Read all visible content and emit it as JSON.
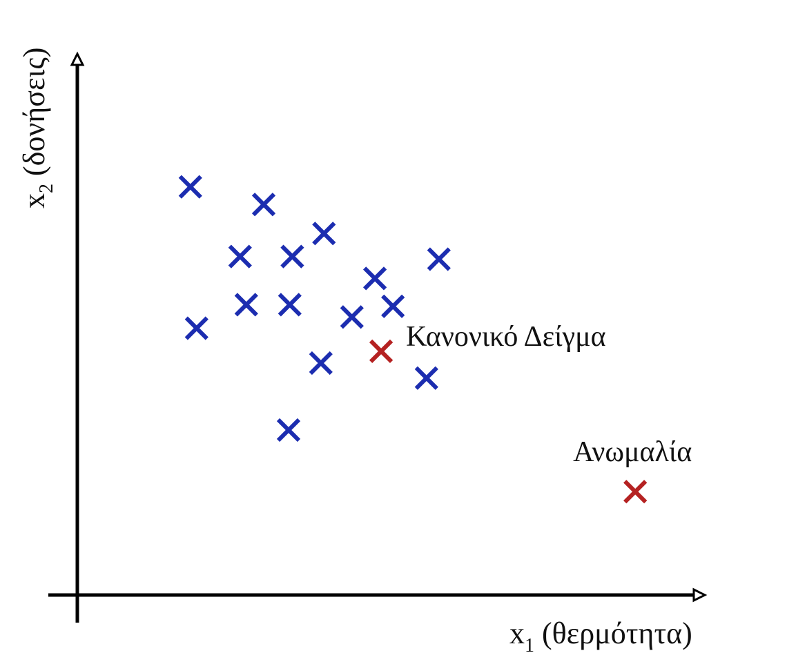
{
  "chart_data": {
    "type": "scatter",
    "title": "",
    "xlabel": {
      "base": "x",
      "sub": "1",
      "text": " (θερμότητα)"
    },
    "ylabel": {
      "base": "x",
      "sub": "2",
      "text": " (δονήσεις)"
    },
    "xlim": [
      0,
      10
    ],
    "ylim": [
      0,
      10
    ],
    "grid": false,
    "ticks": false,
    "colors": {
      "normal": "#1c2db0",
      "highlight": "#b52222"
    },
    "series": [
      {
        "points": [
          {
            "x": 1.82,
            "y": 7.62
          },
          {
            "x": 3.0,
            "y": 7.29
          },
          {
            "x": 2.62,
            "y": 6.32
          },
          {
            "x": 3.46,
            "y": 6.32
          },
          {
            "x": 3.97,
            "y": 6.75
          },
          {
            "x": 5.82,
            "y": 6.27
          },
          {
            "x": 4.79,
            "y": 5.91
          },
          {
            "x": 2.72,
            "y": 5.42
          },
          {
            "x": 3.42,
            "y": 5.42
          },
          {
            "x": 5.08,
            "y": 5.39
          },
          {
            "x": 4.42,
            "y": 5.19
          },
          {
            "x": 1.92,
            "y": 4.98
          },
          {
            "x": 3.92,
            "y": 4.33
          },
          {
            "x": 5.62,
            "y": 4.05
          },
          {
            "x": 3.4,
            "y": 3.08
          }
        ]
      },
      {
        "highlight": true,
        "points": [
          {
            "x": 4.89,
            "y": 4.55,
            "label": "Κανονικό Δείγμα"
          },
          {
            "x": 8.98,
            "y": 1.93,
            "label": "Ανωμαλία"
          }
        ]
      }
    ]
  }
}
